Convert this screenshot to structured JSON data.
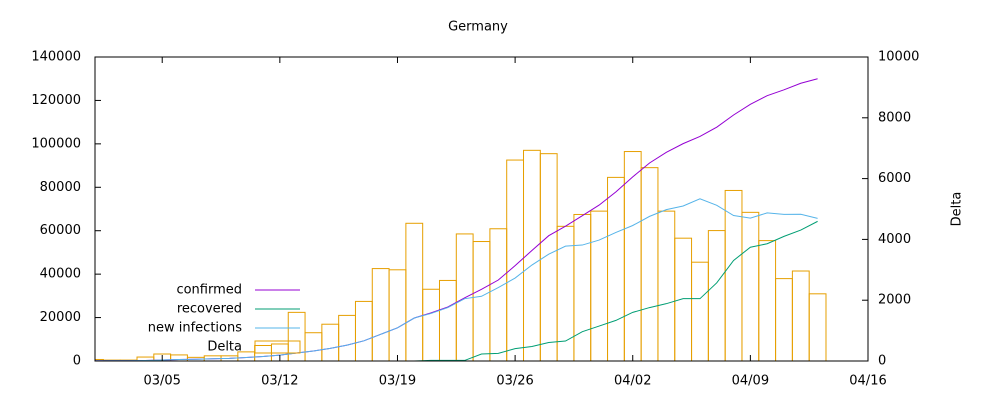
{
  "chart_data": {
    "type": "line",
    "title": "Germany",
    "y2label": "Delta",
    "x": [
      "03/01",
      "03/02",
      "03/03",
      "03/04",
      "03/05",
      "03/06",
      "03/07",
      "03/08",
      "03/09",
      "03/10",
      "03/11",
      "03/12",
      "03/13",
      "03/14",
      "03/15",
      "03/16",
      "03/17",
      "03/18",
      "03/19",
      "03/20",
      "03/21",
      "03/22",
      "03/23",
      "03/24",
      "03/25",
      "03/26",
      "03/27",
      "03/28",
      "03/29",
      "03/30",
      "03/31",
      "04/01",
      "04/02",
      "04/03",
      "04/04",
      "04/05",
      "04/06",
      "04/07",
      "04/08",
      "04/09",
      "04/10",
      "04/11",
      "04/12",
      "04/13"
    ],
    "xlim": [
      "03/01",
      "04/16"
    ],
    "xticks": [
      "03/05",
      "03/12",
      "03/19",
      "03/26",
      "04/02",
      "04/09",
      "04/16"
    ],
    "ylim": [
      0,
      140000
    ],
    "yticks": [
      0,
      20000,
      40000,
      60000,
      80000,
      100000,
      120000,
      140000
    ],
    "y2lim": [
      0,
      10000
    ],
    "y2ticks": [
      0,
      2000,
      4000,
      6000,
      8000,
      10000
    ],
    "legend": "bottom-left",
    "series": [
      {
        "name": "confirmed",
        "color": "#9400d3",
        "values": [
          130,
          150,
          190,
          260,
          480,
          670,
          800,
          1040,
          1200,
          1600,
          2100,
          2700,
          3700,
          4600,
          5800,
          7300,
          9300,
          12300,
          15300,
          19800,
          22200,
          24900,
          29100,
          33000,
          37300,
          43900,
          50900,
          57700,
          62100,
          66900,
          71800,
          77900,
          84800,
          91200,
          96100,
          100100,
          103400,
          107700,
          113300,
          118200,
          122200,
          124900,
          127900,
          130000
        ]
      },
      {
        "name": "recovered",
        "color": "#009e73",
        "values": [
          0,
          0,
          0,
          0,
          0,
          0,
          0,
          0,
          0,
          0,
          0,
          0,
          0,
          0,
          0,
          0,
          0,
          0,
          0,
          0,
          266,
          266,
          266,
          3200,
          3500,
          5700,
          6700,
          8500,
          9200,
          13500,
          16100,
          18700,
          22400,
          24600,
          26400,
          28700,
          28700,
          36000,
          46300,
          52400,
          54000,
          57400,
          60300,
          64300
        ]
      },
      {
        "name": "new infections",
        "color": "#56b4e9",
        "values": [
          130,
          150,
          190,
          260,
          480,
          670,
          800,
          1040,
          1200,
          1600,
          2100,
          2700,
          3700,
          4600,
          5800,
          7300,
          9300,
          12300,
          15300,
          19800,
          21900,
          24600,
          28700,
          29800,
          33800,
          38200,
          44200,
          49200,
          52900,
          53400,
          55700,
          59200,
          62400,
          66600,
          69700,
          71400,
          74700,
          71700,
          67000,
          65800,
          68200,
          67500,
          67600,
          65700
        ]
      },
      {
        "name": "Delta",
        "type": "bar",
        "axis": "y2",
        "color": "#e69f00",
        "values": [
          50,
          30,
          30,
          130,
          230,
          200,
          120,
          170,
          170,
          300,
          510,
          560,
          1600,
          930,
          1210,
          1500,
          1960,
          3040,
          3000,
          4530,
          2360,
          2650,
          4180,
          3930,
          4350,
          6610,
          6930,
          6820,
          4430,
          4820,
          4930,
          6040,
          6890,
          6360,
          4930,
          4040,
          3250,
          4290,
          5610,
          4890,
          3960,
          2710,
          2960,
          2210
        ]
      }
    ]
  }
}
